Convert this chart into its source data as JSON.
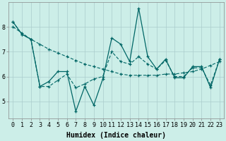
{
  "xlabel": "Humidex (Indice chaleur)",
  "background_color": "#cceee8",
  "grid_color": "#aacccc",
  "line_color": "#006666",
  "x": [
    0,
    1,
    2,
    3,
    4,
    5,
    6,
    7,
    8,
    9,
    10,
    11,
    12,
    13,
    14,
    15,
    16,
    17,
    18,
    19,
    20,
    21,
    22,
    23
  ],
  "y_jagged": [
    8.2,
    7.7,
    7.5,
    5.6,
    5.8,
    6.2,
    6.2,
    4.6,
    5.6,
    4.85,
    5.9,
    7.55,
    7.3,
    6.6,
    8.75,
    6.8,
    6.3,
    6.7,
    5.95,
    5.95,
    6.4,
    6.4,
    5.55,
    6.7
  ],
  "y_smooth": [
    8.2,
    7.7,
    7.5,
    5.6,
    5.6,
    5.85,
    6.1,
    5.55,
    5.7,
    5.9,
    6.0,
    7.0,
    6.6,
    6.5,
    6.8,
    6.5,
    6.3,
    6.65,
    6.0,
    6.0,
    6.35,
    6.35,
    5.65,
    6.7
  ],
  "y_trend": [
    8.0,
    7.75,
    7.5,
    7.3,
    7.1,
    6.95,
    6.8,
    6.65,
    6.5,
    6.4,
    6.3,
    6.2,
    6.1,
    6.05,
    6.05,
    6.05,
    6.05,
    6.1,
    6.1,
    6.15,
    6.2,
    6.3,
    6.45,
    6.6
  ],
  "ylim": [
    4.3,
    9.0
  ],
  "yticks": [
    5,
    6,
    7,
    8
  ],
  "xticks": [
    0,
    1,
    2,
    3,
    4,
    5,
    6,
    7,
    8,
    9,
    10,
    11,
    12,
    13,
    14,
    15,
    16,
    17,
    18,
    19,
    20,
    21,
    22,
    23
  ],
  "tick_font_size": 6,
  "label_font_size": 7
}
